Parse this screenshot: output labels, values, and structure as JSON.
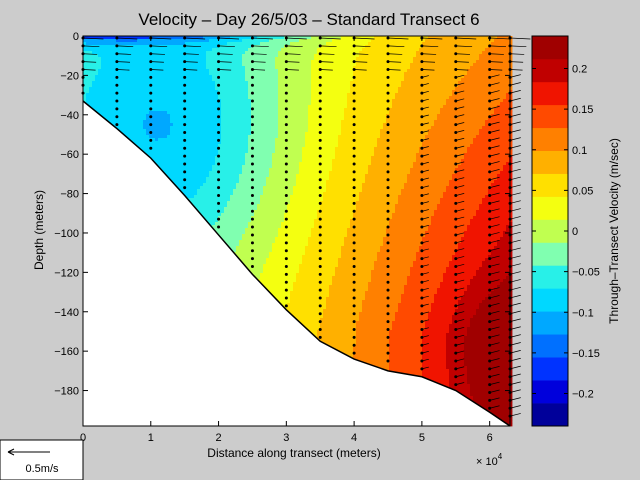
{
  "chart_data": {
    "type": "contour",
    "title": "Velocity – Day 26/5/03 – Standard Transect 6",
    "xlabel": "Distance along transect (meters)",
    "ylabel": "Depth (meters)",
    "x_multiplier_label": "× 10",
    "x_multiplier_exp": "4",
    "xlim": [
      0,
      6.3
    ],
    "ylim": [
      -198,
      0
    ],
    "x_ticks": [
      "0",
      "1",
      "2",
      "3",
      "4",
      "5",
      "6"
    ],
    "y_ticks": [
      "0",
      "−20",
      "−40",
      "−60",
      "−80",
      "−100",
      "−120",
      "−140",
      "−160",
      "−180"
    ],
    "colorbar": {
      "label": "Through–Transect Velocity (m/sec)",
      "range": [
        -0.24,
        0.24
      ],
      "ticks": [
        "0.2",
        "0.15",
        "0.1",
        "0.05",
        "0",
        "−0.05",
        "−0.1",
        "−0.15",
        "−0.2"
      ],
      "colors": [
        "#00009a",
        "#0000dc",
        "#0033ff",
        "#0070ff",
        "#00a8ff",
        "#00d8ff",
        "#28f0e8",
        "#80ffb0",
        "#c0ff50",
        "#f4ff10",
        "#ffe000",
        "#ffb000",
        "#ff8000",
        "#ff4a00",
        "#f01400",
        "#c00000",
        "#a00000"
      ]
    },
    "bottom_profile": [
      [
        0,
        -33
      ],
      [
        0.5,
        -47
      ],
      [
        1,
        -62
      ],
      [
        1.5,
        -81
      ],
      [
        2,
        -101
      ],
      [
        2.5,
        -121
      ],
      [
        3,
        -139
      ],
      [
        3.5,
        -155
      ],
      [
        4,
        -164
      ],
      [
        4.5,
        -170
      ],
      [
        5,
        -173
      ],
      [
        5.5,
        -180
      ],
      [
        6,
        -191
      ],
      [
        6.3,
        -198
      ]
    ],
    "station_x": [
      0,
      0.5,
      1,
      1.5,
      2,
      2.5,
      3,
      3.5,
      4,
      4.5,
      5,
      5.5,
      6,
      6.3
    ],
    "scale_arrow_label": "0.5m/s"
  }
}
